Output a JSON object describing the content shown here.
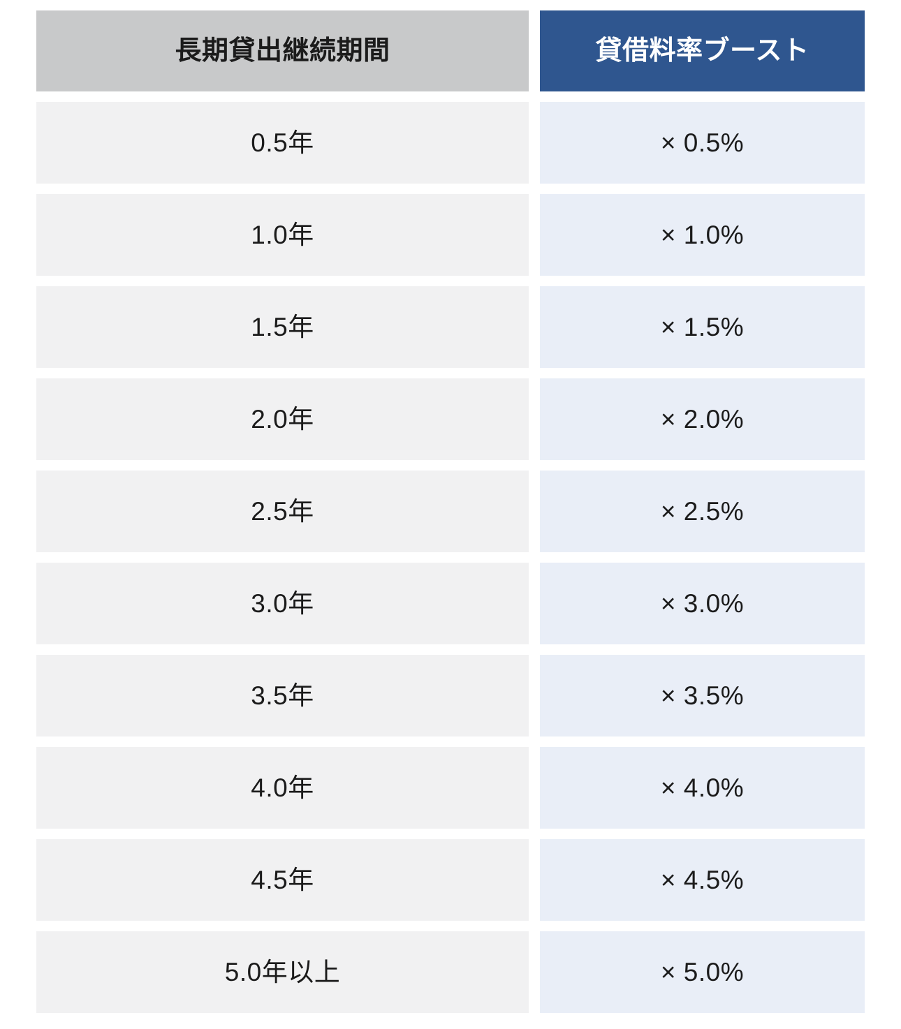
{
  "chart_data": {
    "type": "table",
    "columns": [
      "長期貸出継続期間",
      "貸借料率ブースト"
    ],
    "rows": [
      {
        "period": "0.5年",
        "boost": "× 0.5%"
      },
      {
        "period": "1.0年",
        "boost": "× 1.0%"
      },
      {
        "period": "1.5年",
        "boost": "× 1.5%"
      },
      {
        "period": "2.0年",
        "boost": "× 2.0%"
      },
      {
        "period": "2.5年",
        "boost": "× 2.5%"
      },
      {
        "period": "3.0年",
        "boost": "× 3.0%"
      },
      {
        "period": "3.5年",
        "boost": "× 3.5%"
      },
      {
        "period": "4.0年",
        "boost": "× 4.0%"
      },
      {
        "period": "4.5年",
        "boost": "× 4.5%"
      },
      {
        "period": "5.0年以上",
        "boost": "× 5.0%"
      }
    ],
    "period_years": [
      0.5,
      1.0,
      1.5,
      2.0,
      2.5,
      3.0,
      3.5,
      4.0,
      4.5,
      5.0
    ],
    "boost_percent": [
      0.5,
      1.0,
      1.5,
      2.0,
      2.5,
      3.0,
      3.5,
      4.0,
      4.5,
      5.0
    ]
  },
  "colors": {
    "header_period_bg": "#c8c9ca",
    "header_boost_bg": "#2f568f",
    "header_boost_text": "#ffffff",
    "cell_period_bg": "#f1f1f2",
    "cell_boost_bg": "#e9eef7",
    "text": "#1b1b1b"
  }
}
